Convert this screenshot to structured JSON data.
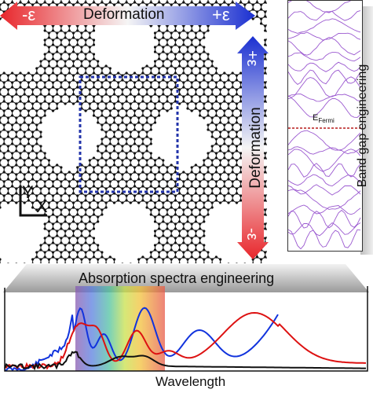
{
  "top_arrow": {
    "left": "-ε",
    "label": "Deformation",
    "right": "+ε"
  },
  "right_arrow": {
    "top": "+ε",
    "label": "Deformation",
    "bottom": "-ε"
  },
  "axes_indicator": {
    "y": "Y",
    "x": "X"
  },
  "band_panel": {
    "fermi_label": "E",
    "fermi_subscript": "Fermi",
    "side_label": "Band gap engineering"
  },
  "absorption": {
    "banner": "Absorption spectra engineering",
    "xlabel": "Wavelength"
  },
  "colors": {
    "arrow_red": "#e8262b",
    "arrow_blue": "#1a2fd1",
    "band_lines": "#9b59d0",
    "fermi_line": "#b71c1c",
    "series_blue": "#1133dd",
    "series_red": "#dd1111",
    "series_black": "#111111",
    "dashed_box": "#2233aa"
  },
  "icons": [
    "lattice-image",
    "dashed-selection-box",
    "band-structure-plot",
    "absorption-spectrum-plot"
  ]
}
